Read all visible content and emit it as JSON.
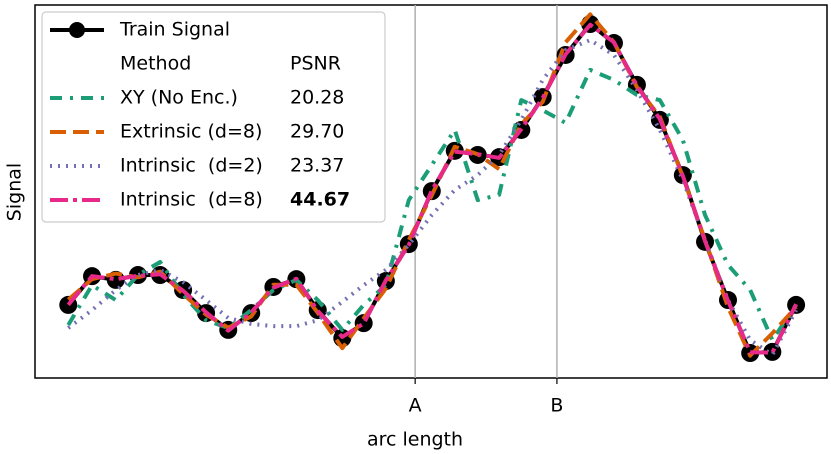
{
  "chart_data": {
    "type": "line",
    "xlabel": "arc length",
    "ylabel": "Signal",
    "xlim": [
      0,
      1
    ],
    "ylim": [
      0,
      1
    ],
    "xticks": [
      {
        "value": 0.48,
        "label": "A"
      },
      {
        "value": 0.659,
        "label": "B"
      }
    ],
    "vlines_at_ticks": true,
    "legend": {
      "header_method": "Method",
      "header_psnr": "PSNR",
      "location": "upper left"
    },
    "x": [
      0.042,
      0.072,
      0.102,
      0.13,
      0.158,
      0.187,
      0.216,
      0.244,
      0.273,
      0.301,
      0.33,
      0.357,
      0.388,
      0.415,
      0.443,
      0.472,
      0.501,
      0.53,
      0.559,
      0.586,
      0.614,
      0.641,
      0.67,
      0.701,
      0.731,
      0.76,
      0.789,
      0.818,
      0.846,
      0.875,
      0.903,
      0.931,
      0.961
    ],
    "series": [
      {
        "name": "Train Signal",
        "color": "#000000",
        "width": 4,
        "dash": "",
        "markers": true,
        "values": [
          0.196,
          0.273,
          0.263,
          0.276,
          0.276,
          0.236,
          0.174,
          0.129,
          0.174,
          0.244,
          0.265,
          0.182,
          0.107,
          0.147,
          0.26,
          0.359,
          0.501,
          0.609,
          0.598,
          0.592,
          0.665,
          0.753,
          0.866,
          0.949,
          0.898,
          0.786,
          0.692,
          0.544,
          0.365,
          0.209,
          0.067,
          0.07,
          0.196
        ]
      },
      {
        "name": "XY (No Enc.)",
        "psnr": "20.28",
        "color": "#1b9e77",
        "width": 4,
        "dash": "12,8,3,8",
        "markers": false,
        "values": [
          0.142,
          0.249,
          0.209,
          0.276,
          0.311,
          0.223,
          0.155,
          0.134,
          0.182,
          0.236,
          0.263,
          0.209,
          0.129,
          0.196,
          0.249,
          0.477,
          0.571,
          0.665,
          0.477,
          0.491,
          0.745,
          0.718,
          0.684,
          0.826,
          0.799,
          0.759,
          0.745,
          0.638,
          0.437,
          0.303,
          0.236,
          0.102,
          0.196
        ]
      },
      {
        "name": "Extrinsic (d=8)",
        "psnr": "29.70",
        "color": "#d95f02",
        "width": 4,
        "dash": "16,7",
        "markers": false,
        "values": [
          0.21,
          0.265,
          0.28,
          0.27,
          0.285,
          0.225,
          0.17,
          0.135,
          0.165,
          0.25,
          0.25,
          0.175,
          0.08,
          0.16,
          0.24,
          0.37,
          0.49,
          0.62,
          0.6,
          0.56,
          0.68,
          0.74,
          0.9,
          0.975,
          0.9,
          0.78,
          0.7,
          0.54,
          0.37,
          0.19,
          0.06,
          0.12,
          0.19
        ]
      },
      {
        "name": "Intrinsic  (d=2)",
        "psnr": "23.37",
        "color": "#7570b3",
        "width": 4,
        "dash": "2,6",
        "markers": false,
        "values": [
          0.134,
          0.182,
          0.236,
          0.276,
          0.29,
          0.257,
          0.209,
          0.161,
          0.145,
          0.139,
          0.139,
          0.155,
          0.204,
          0.249,
          0.29,
          0.357,
          0.437,
          0.504,
          0.544,
          0.598,
          0.692,
          0.799,
          0.879,
          0.906,
          0.866,
          0.772,
          0.665,
          0.531,
          0.37,
          0.209,
          0.102,
          0.062,
          0.182
        ]
      },
      {
        "name": "Intrinsic  (d=8)",
        "psnr": "44.67",
        "psnr_bold": true,
        "color": "#e7298a",
        "width": 4,
        "dash": "18,5,4,5",
        "markers": false,
        "values": [
          0.196,
          0.273,
          0.265,
          0.274,
          0.278,
          0.234,
          0.176,
          0.127,
          0.176,
          0.242,
          0.266,
          0.18,
          0.11,
          0.146,
          0.262,
          0.357,
          0.503,
          0.607,
          0.6,
          0.59,
          0.667,
          0.751,
          0.868,
          0.947,
          0.9,
          0.784,
          0.694,
          0.542,
          0.367,
          0.207,
          0.069,
          0.068,
          0.198
        ]
      }
    ]
  }
}
